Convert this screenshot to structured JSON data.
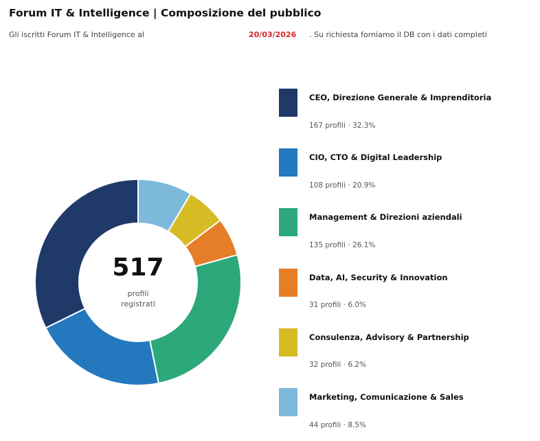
{
  "header": {
    "title": "Forum IT & Intelligence | Composizione del pubblico",
    "subtitle_text": "Gli iscritti Forum IT & Intelligence al",
    "subtitle_date": "20/03/2026",
    "subtitle_tail": ". Su richiesta forniamo il DB con i dati completi"
  },
  "chart_data": {
    "type": "pie",
    "variant": "donut",
    "title": "Forum IT & Intelligence | Composizione del pubblico",
    "center_value": "517",
    "center_label_line1": "profili",
    "center_label_line2": "registrati",
    "total": 517,
    "series": [
      {
        "name": "CEO, Direzione Generale & Imprenditoria",
        "value": 167,
        "percent": "32.3%",
        "detail": "167 profili · 32.3%",
        "color": "#1f3a68"
      },
      {
        "name": "CIO, CTO & Digital Leadership",
        "value": 108,
        "percent": "20.9%",
        "detail": "108 profili · 20.9%",
        "color": "#2478be"
      },
      {
        "name": "Management & Direzioni aziendali",
        "value": 135,
        "percent": "26.1%",
        "detail": "135 profili · 26.1%",
        "color": "#2ca87a"
      },
      {
        "name": "Data, AI, Security & Innovation",
        "value": 31,
        "percent": "6.0%",
        "detail": "31 profili · 6.0%",
        "color": "#e67e28"
      },
      {
        "name": "Consulenza, Advisory & Partnership",
        "value": 32,
        "percent": "6.2%",
        "detail": "32 profili · 6.2%",
        "color": "#d6bb25"
      },
      {
        "name": "Marketing, Comunicazione & Sales",
        "value": 44,
        "percent": "8.5%",
        "detail": "44 profili · 8.5%",
        "color": "#7db9db"
      }
    ]
  }
}
